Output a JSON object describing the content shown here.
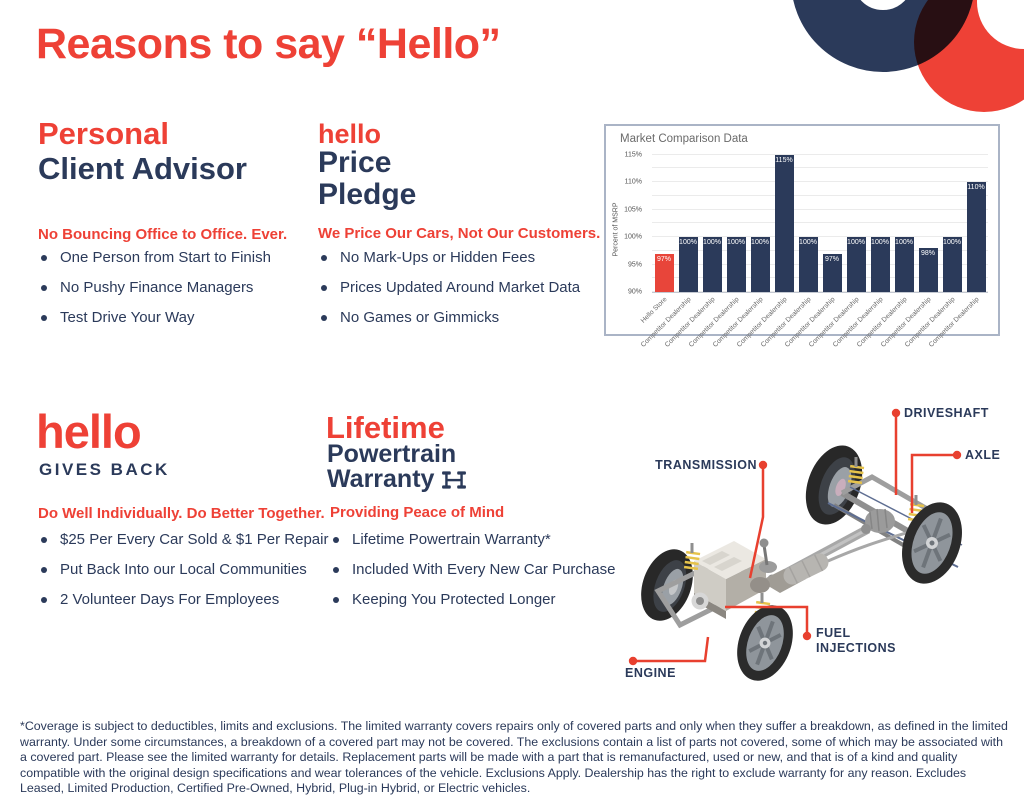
{
  "page_title": "Reasons to say “Hello”",
  "colors": {
    "accent_red": "#ee4136",
    "navy": "#2b3a5a"
  },
  "sections": {
    "advisor": {
      "heading_accent": "Personal",
      "heading_rest": "Client Advisor",
      "tagline": "No Bouncing Office to Office. Ever.",
      "bullets": [
        "One Person from Start to Finish",
        "No Pushy Finance Managers",
        "Test Drive Your Way"
      ]
    },
    "price": {
      "logo": "hello",
      "heading_line1": "Price",
      "heading_line2": "Pledge",
      "tagline": "We Price Our Cars, Not Our Customers.",
      "bullets": [
        "No Mark-Ups or Hidden Fees",
        "Prices Updated Around Market Data",
        "No Games or Gimmicks"
      ]
    },
    "gives_back": {
      "logo": "hello",
      "heading": "GIVES BACK",
      "tagline": "Do Well Individually. Do Better Together.",
      "bullets": [
        "$25 Per Every Car Sold & $1 Per Repair",
        "Put Back Into our Local Communities",
        "2 Volunteer Days For Employees"
      ]
    },
    "warranty": {
      "heading_accent": "Lifetime",
      "heading_line2": "Powertrain",
      "heading_line3": "Warranty",
      "tagline": "Providing Peace of Mind",
      "bullets": [
        "Lifetime Powertrain Warranty*",
        "Included With Every New Car Purchase",
        "Keeping You Protected Longer"
      ]
    }
  },
  "chart_data": {
    "type": "bar",
    "title": "Market Comparison Data",
    "xlabel": "",
    "ylabel": "Percent of MSRP",
    "categories": [
      "Hello Store",
      "Competitor Dealership",
      "Competitor Dealership",
      "Competitor Dealership",
      "Competitor Dealership",
      "Competitor Dealership",
      "Competitor Dealership",
      "Competitor Dealership",
      "Competitor Dealership",
      "Competitor Dealership",
      "Competitor Dealership",
      "Competitor Dealership",
      "Competitor Dealership",
      "Competitor Dealership"
    ],
    "values": [
      97,
      100,
      100,
      100,
      100,
      115,
      100,
      97,
      100,
      100,
      100,
      98,
      100,
      110
    ],
    "bar_labels": [
      "97%",
      "100%",
      "100%",
      "100%",
      "100%",
      "115%",
      "100%",
      "97%",
      "100%",
      "100%",
      "100%",
      "98%",
      "100%",
      "110%"
    ],
    "yticks": [
      90,
      95,
      100,
      105,
      110,
      115
    ],
    "ytick_labels": [
      "90%",
      "95%",
      "100%",
      "105%",
      "110%",
      "115%"
    ],
    "ylim": [
      90,
      116
    ],
    "minor_grid_step": 2.5,
    "grid": true,
    "legend": false,
    "highlight_index": 0,
    "highlight_color": "#e8453a",
    "bar_color": "#2b3a5a"
  },
  "diagram": {
    "labels": {
      "driveshaft": "DRIVESHAFT",
      "axle": "AXLE",
      "transmission": "TRANSMISSION",
      "fuel_injections": "FUEL INJECTIONS",
      "engine": "ENGINE"
    }
  },
  "footnote": "*Coverage is subject to deductibles, limits and exclusions. The limited warranty covers repairs only of covered parts and only when they suffer a breakdown, as defined in the limited warranty. Under some circumstances, a breakdown of a covered part may not be covered. The exclusions contain a list of parts not covered, some of which may be associated with a covered part. Please see the limited warranty for details. Replacement parts will be made with a part that is remanufactured, used or new, and that is of a kind and quality compatible with the original design specifications and wear tolerances of the vehicle. Exclusions Apply. Dealership has the right to exclude warranty for any reason. Excludes Leased, Limited Production, Certified Pre-Owned, Hybrid, Plug-in Hybrid, or Electric vehicles."
}
